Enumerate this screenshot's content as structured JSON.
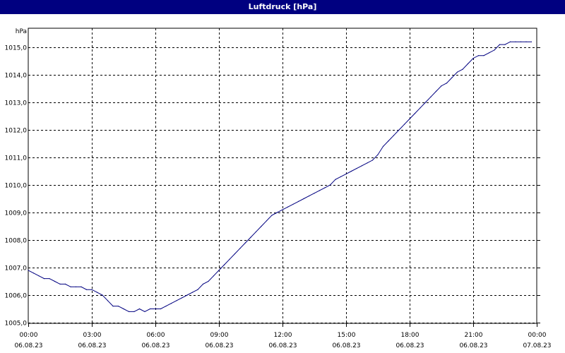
{
  "chart_data": {
    "type": "line",
    "title": "Luftdruck [hPa]",
    "ylabel": "hPa",
    "xlabel": "",
    "ylim": [
      1005,
      1015.5
    ],
    "xlim": [
      0,
      24
    ],
    "grid": true,
    "yticks": [
      {
        "value": 1005,
        "label": "1005,0"
      },
      {
        "value": 1006,
        "label": "1006,0"
      },
      {
        "value": 1007,
        "label": "1007,0"
      },
      {
        "value": 1008,
        "label": "1008,0"
      },
      {
        "value": 1009,
        "label": "1009,0"
      },
      {
        "value": 1010,
        "label": "1010,0"
      },
      {
        "value": 1011,
        "label": "1011,0"
      },
      {
        "value": 1012,
        "label": "1012,0"
      },
      {
        "value": 1013,
        "label": "1013,0"
      },
      {
        "value": 1014,
        "label": "1014,0"
      },
      {
        "value": 1015,
        "label": "1015,0"
      }
    ],
    "xticks": [
      {
        "value": 0,
        "time": "00:00",
        "date": "06.08.23"
      },
      {
        "value": 3,
        "time": "03:00",
        "date": "06.08.23"
      },
      {
        "value": 6,
        "time": "06:00",
        "date": "06.08.23"
      },
      {
        "value": 9,
        "time": "09:00",
        "date": "06.08.23"
      },
      {
        "value": 12,
        "time": "12:00",
        "date": "06.08.23"
      },
      {
        "value": 15,
        "time": "15:00",
        "date": "06.08.23"
      },
      {
        "value": 18,
        "time": "18:00",
        "date": "06.08.23"
      },
      {
        "value": 21,
        "time": "21:00",
        "date": "06.08.23"
      },
      {
        "value": 24,
        "time": "00:00",
        "date": "07.08.23"
      }
    ],
    "series": [
      {
        "color": "#000080",
        "points": [
          [
            0.0,
            1006.9
          ],
          [
            0.25,
            1006.8
          ],
          [
            0.5,
            1006.7
          ],
          [
            0.75,
            1006.6
          ],
          [
            1.0,
            1006.6
          ],
          [
            1.25,
            1006.5
          ],
          [
            1.5,
            1006.4
          ],
          [
            1.75,
            1006.4
          ],
          [
            2.0,
            1006.3
          ],
          [
            2.25,
            1006.3
          ],
          [
            2.5,
            1006.3
          ],
          [
            2.75,
            1006.2
          ],
          [
            3.0,
            1006.2
          ],
          [
            3.25,
            1006.1
          ],
          [
            3.5,
            1006.0
          ],
          [
            3.75,
            1005.8
          ],
          [
            4.0,
            1005.6
          ],
          [
            4.25,
            1005.6
          ],
          [
            4.5,
            1005.5
          ],
          [
            4.75,
            1005.4
          ],
          [
            5.0,
            1005.4
          ],
          [
            5.25,
            1005.5
          ],
          [
            5.5,
            1005.4
          ],
          [
            5.75,
            1005.5
          ],
          [
            6.0,
            1005.5
          ],
          [
            6.25,
            1005.5
          ],
          [
            6.5,
            1005.6
          ],
          [
            6.75,
            1005.7
          ],
          [
            7.0,
            1005.8
          ],
          [
            7.25,
            1005.9
          ],
          [
            7.5,
            1006.0
          ],
          [
            7.75,
            1006.1
          ],
          [
            8.0,
            1006.2
          ],
          [
            8.25,
            1006.4
          ],
          [
            8.5,
            1006.5
          ],
          [
            8.75,
            1006.7
          ],
          [
            9.0,
            1006.9
          ],
          [
            9.25,
            1007.1
          ],
          [
            9.5,
            1007.3
          ],
          [
            9.75,
            1007.5
          ],
          [
            10.0,
            1007.7
          ],
          [
            10.25,
            1007.9
          ],
          [
            10.5,
            1008.1
          ],
          [
            10.75,
            1008.3
          ],
          [
            11.0,
            1008.5
          ],
          [
            11.25,
            1008.7
          ],
          [
            11.5,
            1008.9
          ],
          [
            11.75,
            1009.0
          ],
          [
            12.0,
            1009.1
          ],
          [
            12.25,
            1009.2
          ],
          [
            12.5,
            1009.3
          ],
          [
            12.75,
            1009.4
          ],
          [
            13.0,
            1009.5
          ],
          [
            13.25,
            1009.6
          ],
          [
            13.5,
            1009.7
          ],
          [
            13.75,
            1009.8
          ],
          [
            14.0,
            1009.9
          ],
          [
            14.25,
            1010.0
          ],
          [
            14.5,
            1010.2
          ],
          [
            14.75,
            1010.3
          ],
          [
            15.0,
            1010.4
          ],
          [
            15.25,
            1010.5
          ],
          [
            15.5,
            1010.6
          ],
          [
            15.75,
            1010.7
          ],
          [
            16.0,
            1010.8
          ],
          [
            16.25,
            1010.9
          ],
          [
            16.5,
            1011.1
          ],
          [
            16.75,
            1011.4
          ],
          [
            17.0,
            1011.6
          ],
          [
            17.25,
            1011.8
          ],
          [
            17.5,
            1012.0
          ],
          [
            17.75,
            1012.2
          ],
          [
            18.0,
            1012.4
          ],
          [
            18.25,
            1012.6
          ],
          [
            18.5,
            1012.8
          ],
          [
            18.75,
            1013.0
          ],
          [
            19.0,
            1013.2
          ],
          [
            19.25,
            1013.4
          ],
          [
            19.5,
            1013.6
          ],
          [
            19.75,
            1013.7
          ],
          [
            20.0,
            1013.9
          ],
          [
            20.25,
            1014.1
          ],
          [
            20.5,
            1014.2
          ],
          [
            20.75,
            1014.4
          ],
          [
            21.0,
            1014.6
          ],
          [
            21.25,
            1014.7
          ],
          [
            21.5,
            1014.7
          ],
          [
            21.75,
            1014.8
          ],
          [
            22.0,
            1014.9
          ],
          [
            22.25,
            1015.1
          ],
          [
            22.5,
            1015.1
          ],
          [
            22.75,
            1015.2
          ],
          [
            23.0,
            1015.2
          ],
          [
            23.25,
            1015.2
          ],
          [
            23.5,
            1015.2
          ],
          [
            23.75,
            1015.2
          ]
        ]
      }
    ]
  }
}
